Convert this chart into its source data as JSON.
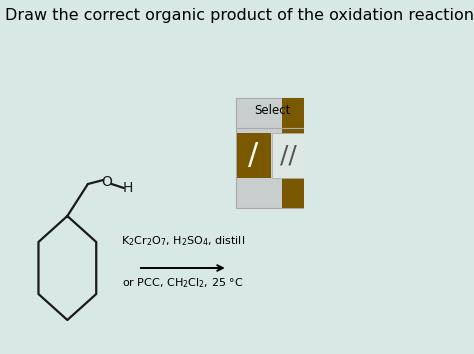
{
  "title": "Draw the correct organic product of the oxidation reaction shown:",
  "title_fontsize": 11.5,
  "bg_color": "#d8e8e4",
  "molecule_color": "#1a1a1a",
  "reagent_line1": "K$_2$Cr$_2$O$_7$, H$_2$SO$_4$, distill",
  "reagent_line2": "or PCC, CH$_2$Cl$_2$, 25 °C",
  "select_label": "Select",
  "panel_color": "#7a5800",
  "panel_bg": "#c8d4d0",
  "panel_light": "#e0e8e4"
}
